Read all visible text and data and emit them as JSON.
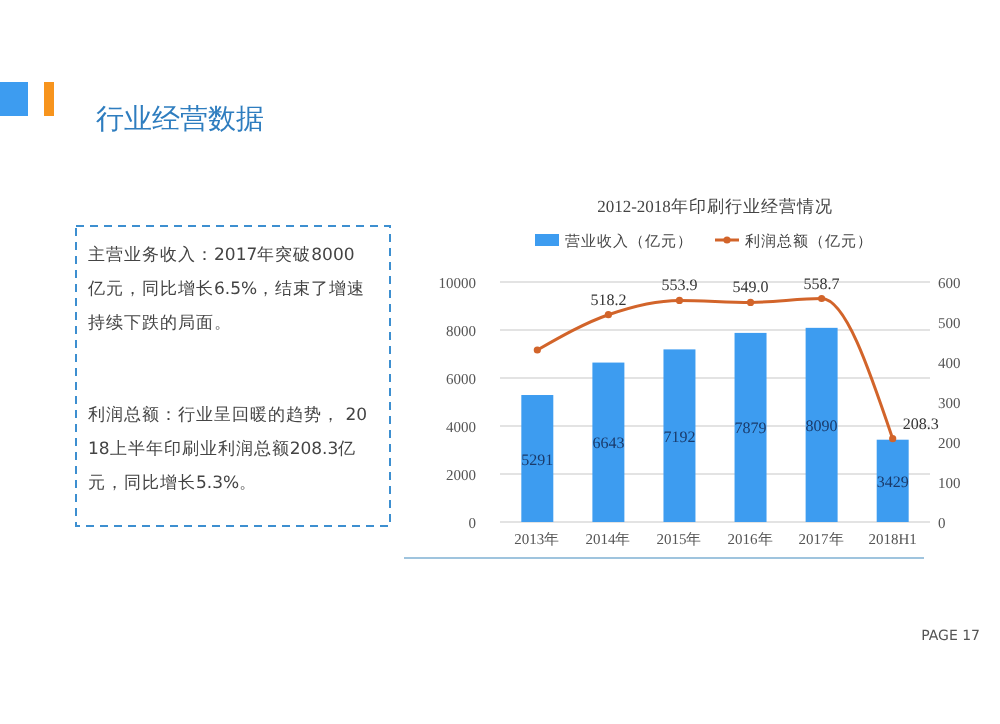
{
  "chart_data": {
    "type": "bar",
    "title": "2012-2018年印刷行业经营情况",
    "categories": [
      "2013年",
      "2014年",
      "2015年",
      "2016年",
      "2017年",
      "2018H1"
    ],
    "series": [
      {
        "name": "营业收入（亿元）",
        "color": "#3d9cf0",
        "values": [
          5291,
          6643,
          7192,
          7879,
          8090,
          3429
        ],
        "value_labels": [
          "5291",
          "6643",
          "7192",
          "7879",
          "8090",
          "3429"
        ]
      },
      {
        "name": "利润总额（亿元）",
        "type": "line",
        "axis": "y2",
        "color": "#d2642a",
        "marker": "circle",
        "values": [
          430,
          518.2,
          553.9,
          549.0,
          558.7,
          208.3
        ],
        "value_labels": [
          null,
          "518.2",
          "553.9",
          "549.0",
          "558.7",
          "208.3"
        ]
      }
    ],
    "ylim": [
      0,
      10000
    ],
    "yticks": [
      0,
      2000,
      4000,
      6000,
      8000,
      10000
    ],
    "y2lim": [
      0,
      600
    ],
    "y2ticks": [
      0,
      100,
      200,
      300,
      400,
      500,
      600
    ],
    "grid": "y",
    "legend": "top",
    "annotations": [
      "行业经营数据",
      "主营业务收入：2017年突破8000亿元，同比增长6.5%，结束了增速持续下跌的局面。",
      "利润总额：行业呈回暖的趋势， 2018上半年印刷业利润总额208.3亿元，同比增长5.3%。",
      "PAGE 17"
    ]
  }
}
